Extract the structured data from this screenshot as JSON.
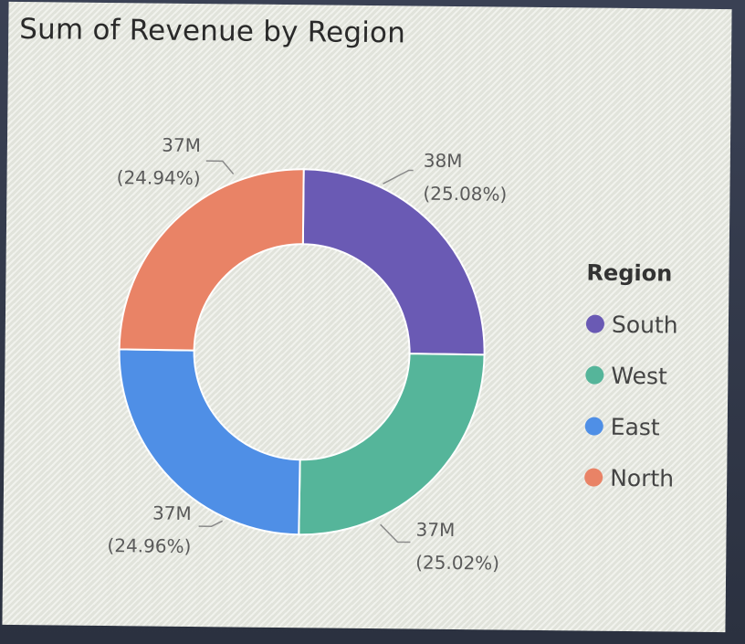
{
  "chart_data": {
    "type": "pie",
    "title": "Sum of Revenue by Region",
    "legend_title": "Region",
    "legend_position": "right",
    "donut": true,
    "slices": [
      {
        "label": "South",
        "value": 38,
        "display_value": "38M",
        "percent": "(25.08%)",
        "color": "#6a5ab4"
      },
      {
        "label": "West",
        "value": 37,
        "display_value": "37M",
        "percent": "(25.02%)",
        "color": "#55b59a"
      },
      {
        "label": "East",
        "value": 37,
        "display_value": "37M",
        "percent": "(24.96%)",
        "color": "#4f8fe6"
      },
      {
        "label": "North",
        "value": 37,
        "display_value": "37M",
        "percent": "(24.94%)",
        "color": "#e98366"
      }
    ],
    "share_fractions": [
      0.2508,
      0.2502,
      0.2496,
      0.2494
    ]
  }
}
